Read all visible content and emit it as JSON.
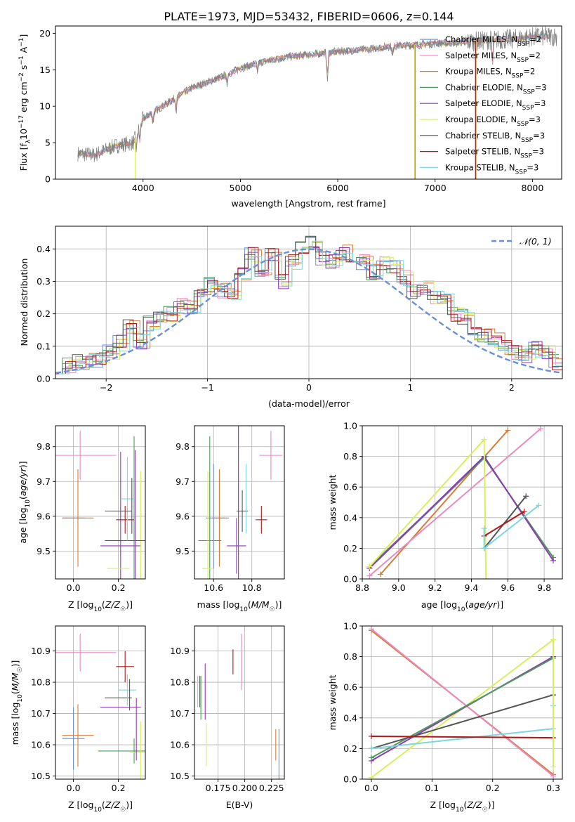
{
  "figure": {
    "title": "PLATE=1973, MJD=53432, FIBERID=0606, z=0.144"
  },
  "colors": {
    "chabrier_miles": "#6c8fdc",
    "salpeter_miles": "#e78ac3",
    "kroupa_miles": "#d97b35",
    "chabrier_elodie": "#4e9a58",
    "salpeter_elodie": "#8e3ab3",
    "kroupa_elodie": "#d9ee5c",
    "chabrier_stelib": "#555555",
    "salpeter_stelib": "#b01818",
    "kroupa_stelib": "#7fd6dc",
    "spectrum": "#808080",
    "normal": "#6a8fd8",
    "grid": "#b0b0b0"
  },
  "chart_data": [
    {
      "id": "spectrum",
      "type": "line",
      "title": "PLATE=1973, MJD=53432, FIBERID=0606, z=0.144",
      "xlabel": "wavelength [Angstrom, rest frame]",
      "ylabel": "Flux [f_λ 10^-17 erg cm^-2 s^-1 A^-1]",
      "xlim": [
        3100,
        8300
      ],
      "ylim": [
        0,
        21
      ],
      "xticks": [
        4000,
        5000,
        6000,
        7000,
        8000
      ],
      "yticks": [
        0,
        5,
        10,
        15,
        20
      ],
      "grid": false,
      "legend_position": "right",
      "legend": [
        {
          "key": "chabrier_miles",
          "label": "Chabrier MILES, N_SSP=2"
        },
        {
          "key": "salpeter_miles",
          "label": "Salpeter MILES, N_SSP=2"
        },
        {
          "key": "kroupa_miles",
          "label": "Kroupa MILES, N_SSP=2"
        },
        {
          "key": "chabrier_elodie",
          "label": "Chabrier ELODIE, N_SSP=3"
        },
        {
          "key": "salpeter_elodie",
          "label": "Salpeter ELODIE, N_SSP=3"
        },
        {
          "key": "kroupa_elodie",
          "label": "Kroupa ELODIE, N_SSP=3"
        },
        {
          "key": "chabrier_stelib",
          "label": "Chabrier STELIB, N_SSP=3"
        },
        {
          "key": "salpeter_stelib",
          "label": "Salpeter STELIB, N_SSP=3"
        },
        {
          "key": "kroupa_stelib",
          "label": "Kroupa STELIB, N_SSP=3"
        }
      ],
      "continuum": {
        "x": [
          3330,
          3500,
          3700,
          3900,
          4000,
          4200,
          4500,
          4800,
          5000,
          5200,
          5500,
          5800,
          6000,
          6300,
          6600,
          6800,
          7000,
          7200,
          7400,
          7600,
          7800,
          8000,
          8200
        ],
        "y": [
          3.5,
          3.3,
          4.5,
          5.0,
          8.3,
          10.0,
          12.5,
          14.0,
          15.2,
          16.0,
          16.8,
          17.2,
          17.5,
          17.8,
          18.3,
          18.4,
          18.6,
          18.7,
          18.9,
          19.1,
          19.2,
          19.5,
          19.6
        ]
      }
    },
    {
      "id": "residuals",
      "type": "line",
      "xlabel": "(data-model)/error",
      "ylabel": "Normed distribution",
      "xlim": [
        -2.5,
        2.5
      ],
      "ylim": [
        0,
        0.47
      ],
      "xticks": [
        -2,
        -1,
        0,
        1,
        2
      ],
      "yticks": [
        0.0,
        0.1,
        0.2,
        0.3,
        0.4
      ],
      "grid": true,
      "legend_position": "top-right",
      "legend_label": "𝒩(0, 1)",
      "normal": {
        "mean": 0,
        "sigma": 1
      },
      "hist_bin_width": 0.1,
      "hist_base": [
        0.04,
        0.04,
        0.05,
        0.055,
        0.06,
        0.085,
        0.11,
        0.16,
        0.115,
        0.17,
        0.185,
        0.2,
        0.225,
        0.22,
        0.26,
        0.29,
        0.27,
        0.26,
        0.32,
        0.38,
        0.33,
        0.38,
        0.3,
        0.36,
        0.4,
        0.42,
        0.37,
        0.36,
        0.39,
        0.38,
        0.36,
        0.33,
        0.36,
        0.34,
        0.31,
        0.27,
        0.28,
        0.25,
        0.24,
        0.2,
        0.19,
        0.14,
        0.13,
        0.12,
        0.1,
        0.08,
        0.07,
        0.09,
        0.08,
        0.05
      ]
    },
    {
      "id": "age_vs_Z",
      "type": "scatter",
      "xlabel": "Z [log10(Z/Z☉)]",
      "ylabel": "age  [log10(age/yr)]",
      "xlim": [
        -0.08,
        0.32
      ],
      "ylim": [
        9.42,
        9.86
      ],
      "xticks": [
        0.0,
        0.2
      ],
      "yticks": [
        9.5,
        9.6,
        9.7,
        9.8
      ],
      "grid": true,
      "points": [
        {
          "key": "chabrier_miles",
          "x": 0.0,
          "xerr": 0.05,
          "y": 9.595,
          "yerr": 0.0
        },
        {
          "key": "kroupa_miles",
          "x": 0.02,
          "xerr": 0.07,
          "y": 9.595,
          "yerr": 0.14
        },
        {
          "key": "salpeter_miles",
          "x": 0.03,
          "xerr": 0.16,
          "y": 9.775,
          "yerr": 0.07
        },
        {
          "key": "chabrier_elodie",
          "x": 0.27,
          "xerr": 0.0,
          "y": 9.53,
          "yerr": 0.3
        },
        {
          "key": "salpeter_elodie",
          "x": 0.21,
          "xerr": 0.09,
          "y": 9.515,
          "yerr": 0.27
        },
        {
          "key": "kroupa_elodie",
          "x": 0.3,
          "xerr": 0.0,
          "y": 9.45,
          "yerr": 0.28
        },
        {
          "key": "chabrier_stelib",
          "x": 0.27,
          "xerr": 0.13,
          "y": 9.53,
          "yerr": 0.0
        },
        {
          "key": "salpeter_stelib",
          "x": 0.23,
          "xerr": 0.04,
          "y": 9.59,
          "yerr": 0.04
        },
        {
          "key": "kroupa_stelib",
          "x": 0.24,
          "xerr": 0.03,
          "y": 9.65,
          "yerr": 0.12
        },
        {
          "key": "chabrier_stelib",
          "x": 0.2,
          "xerr": 0.06,
          "y": 9.615,
          "yerr": 0.0
        },
        {
          "key": "kroupa_elodie",
          "x": 0.2,
          "xerr": 0.05,
          "y": 9.45,
          "yerr": 0.0
        },
        {
          "key": "chabrier_stelib",
          "x": 0.26,
          "xerr": 0.0,
          "y": 9.63,
          "yerr": 0.08
        },
        {
          "key": "salpeter_elodie",
          "x": 0.275,
          "xerr": 0.0,
          "y": 9.6,
          "yerr": 0.19
        }
      ]
    },
    {
      "id": "age_vs_mass",
      "type": "scatter",
      "xlabel": "mass [log10(M/M☉)]",
      "ylabel": "",
      "xlim": [
        10.5,
        10.97
      ],
      "ylim": [
        9.42,
        9.86
      ],
      "xticks": [
        10.6,
        10.8
      ],
      "yticks": [
        9.5,
        9.6,
        9.7,
        9.8
      ],
      "grid": true,
      "points": [
        {
          "key": "chabrier_miles",
          "x": 10.62,
          "xerr": 0.06,
          "y": 9.595,
          "yerr": 0.0
        },
        {
          "key": "kroupa_miles",
          "x": 10.63,
          "xerr": 0.03,
          "y": 9.595,
          "yerr": 0.14
        },
        {
          "key": "salpeter_miles",
          "x": 10.9,
          "xerr": 0.06,
          "y": 9.775,
          "yerr": 0.07
        },
        {
          "key": "chabrier_elodie",
          "x": 10.58,
          "xerr": 0.06,
          "y": 9.53,
          "yerr": 0.3
        },
        {
          "key": "salpeter_elodie",
          "x": 10.72,
          "xerr": 0.05,
          "y": 9.515,
          "yerr": 0.08
        },
        {
          "key": "kroupa_elodie",
          "x": 10.57,
          "xerr": 0.03,
          "y": 9.45,
          "yerr": 0.28
        },
        {
          "key": "chabrier_stelib",
          "x": 10.75,
          "xerr": 0.03,
          "y": 9.615,
          "yerr": 0.06
        },
        {
          "key": "salpeter_stelib",
          "x": 10.85,
          "xerr": 0.03,
          "y": 9.59,
          "yerr": 0.04
        },
        {
          "key": "kroupa_stelib",
          "x": 10.77,
          "xerr": 0.0,
          "y": 9.65,
          "yerr": 0.1
        },
        {
          "key": "chabrier_miles",
          "x": 10.6,
          "xerr": 0.0,
          "y": 9.6,
          "yerr": 0.15
        },
        {
          "key": "salpeter_elodie",
          "x": 10.73,
          "xerr": 0.0,
          "y": 9.66,
          "yerr": 0.24
        }
      ]
    },
    {
      "id": "massweight_vs_age",
      "type": "line",
      "xlabel": "age  [log10(age/yr)]",
      "ylabel": "mass weight",
      "xlim": [
        8.8,
        9.9
      ],
      "ylim": [
        0.0,
        1.0
      ],
      "xticks": [
        8.8,
        9.0,
        9.2,
        9.4,
        9.6,
        9.8
      ],
      "yticks": [
        0.0,
        0.2,
        0.4,
        0.6,
        0.8,
        1.0
      ],
      "grid": true,
      "series": [
        {
          "key": "kroupa_miles",
          "x": [
            8.9,
            9.6
          ],
          "y": [
            0.03,
            0.97
          ]
        },
        {
          "key": "salpeter_miles",
          "x": [
            8.84,
            9.78
          ],
          "y": [
            0.02,
            0.98
          ]
        },
        {
          "key": "chabrier_miles",
          "x": [
            8.84,
            9.48
          ],
          "y": [
            0.07,
            0.8
          ]
        },
        {
          "key": "chabrier_elodie",
          "x": [
            8.84,
            9.47,
            9.85
          ],
          "y": [
            0.08,
            0.79,
            0.14
          ]
        },
        {
          "key": "salpeter_elodie",
          "x": [
            8.84,
            9.47,
            9.85
          ],
          "y": [
            0.07,
            0.8,
            0.12
          ]
        },
        {
          "key": "kroupa_elodie",
          "x": [
            8.84,
            9.47,
            9.48
          ],
          "y": [
            0.08,
            0.91,
            0.0
          ]
        },
        {
          "key": "chabrier_stelib",
          "x": [
            9.47,
            9.7
          ],
          "y": [
            0.2,
            0.54
          ]
        },
        {
          "key": "salpeter_stelib",
          "x": [
            9.47,
            9.69
          ],
          "y": [
            0.28,
            0.44
          ]
        },
        {
          "key": "kroupa_stelib",
          "x": [
            9.47,
            9.47,
            9.77
          ],
          "y": [
            0.33,
            0.2,
            0.48
          ]
        }
      ]
    },
    {
      "id": "mass_vs_Z",
      "type": "scatter",
      "xlabel": "Z [log10(Z/Z☉)]",
      "ylabel": "mass [log10(M/M☉)]",
      "xlim": [
        -0.08,
        0.32
      ],
      "ylim": [
        10.49,
        10.98
      ],
      "xticks": [
        0.0,
        0.2
      ],
      "yticks": [
        10.5,
        10.6,
        10.7,
        10.8,
        10.9
      ],
      "grid": true,
      "points": [
        {
          "key": "chabrier_miles",
          "x": 0.0,
          "xerr": 0.05,
          "y": 10.62,
          "yerr": 0.1
        },
        {
          "key": "kroupa_miles",
          "x": 0.02,
          "xerr": 0.07,
          "y": 10.63,
          "yerr": 0.1
        },
        {
          "key": "salpeter_miles",
          "x": 0.03,
          "xerr": 0.16,
          "y": 10.895,
          "yerr": 0.06
        },
        {
          "key": "chabrier_elodie",
          "x": 0.27,
          "xerr": 0.16,
          "y": 10.58,
          "yerr": 0.04
        },
        {
          "key": "salpeter_elodie",
          "x": 0.21,
          "xerr": 0.09,
          "y": 10.72,
          "yerr": 0.0
        },
        {
          "key": "kroupa_elodie",
          "x": 0.3,
          "xerr": 0.05,
          "y": 10.575,
          "yerr": 0.1
        },
        {
          "key": "chabrier_stelib",
          "x": 0.2,
          "xerr": 0.06,
          "y": 10.75,
          "yerr": 0.0
        },
        {
          "key": "salpeter_stelib",
          "x": 0.23,
          "xerr": 0.04,
          "y": 10.85,
          "yerr": 0.05
        },
        {
          "key": "kroupa_stelib",
          "x": 0.24,
          "xerr": 0.04,
          "y": 10.775,
          "yerr": 0.05
        },
        {
          "key": "chabrier_stelib",
          "x": 0.25,
          "xerr": 0.0,
          "y": 10.76,
          "yerr": 0.05
        },
        {
          "key": "salpeter_elodie",
          "x": 0.28,
          "xerr": 0.0,
          "y": 10.65,
          "yerr": 0.1
        }
      ]
    },
    {
      "id": "mass_vs_ebv",
      "type": "scatter",
      "xlabel": "E(B-V)",
      "ylabel": "",
      "xlim": [
        0.153,
        0.237
      ],
      "ylim": [
        10.49,
        10.98
      ],
      "xticks": [
        0.175,
        0.2,
        0.225
      ],
      "xticklabels": [
        "0.175",
        "0.200",
        "0.225"
      ],
      "yticks": [
        10.5,
        10.6,
        10.7,
        10.8,
        10.9
      ],
      "grid": true,
      "points": [
        {
          "key": "chabrier_elodie",
          "x": 0.159,
          "y": 10.75,
          "yerr": 0.07
        },
        {
          "key": "chabrier_stelib",
          "x": 0.158,
          "y": 10.77,
          "yerr": 0.05
        },
        {
          "key": "kroupa_stelib",
          "x": 0.156,
          "y": 10.77,
          "yerr": 0.05
        },
        {
          "key": "salpeter_elodie",
          "x": 0.163,
          "y": 10.77,
          "yerr": 0.09
        },
        {
          "key": "kroupa_elodie",
          "x": 0.164,
          "y": 10.6,
          "yerr": 0.07
        },
        {
          "key": "salpeter_stelib",
          "x": 0.189,
          "y": 10.865,
          "yerr": 0.04
        },
        {
          "key": "salpeter_miles",
          "x": 0.197,
          "y": 10.865,
          "yerr": 0.09
        },
        {
          "key": "kroupa_miles",
          "x": 0.229,
          "y": 10.6,
          "yerr": 0.05
        },
        {
          "key": "chabrier_miles",
          "x": 0.232,
          "y": 10.57,
          "yerr": 0.08
        }
      ]
    },
    {
      "id": "massweight_vs_Z",
      "type": "line",
      "xlabel": "Z [log10(Z/Z☉)]",
      "ylabel": "mass weight",
      "xlim": [
        -0.015,
        0.315
      ],
      "ylim": [
        0.0,
        1.0
      ],
      "xticks": [
        0.0,
        0.1,
        0.2,
        0.3
      ],
      "yticks": [
        0.0,
        0.2,
        0.4,
        0.6,
        0.8,
        1.0
      ],
      "grid": true,
      "series": [
        {
          "key": "kroupa_miles",
          "x": [
            0.0,
            0.3
          ],
          "y": [
            0.97,
            0.03
          ]
        },
        {
          "key": "salpeter_miles",
          "x": [
            0.0,
            0.3
          ],
          "y": [
            0.98,
            0.02
          ]
        },
        {
          "key": "kroupa_elodie",
          "x": [
            0.0,
            0.3
          ],
          "y": [
            0.01,
            0.91
          ]
        },
        {
          "key": "salpeter_elodie",
          "x": [
            0.0,
            0.3
          ],
          "y": [
            0.12,
            0.8
          ]
        },
        {
          "key": "chabrier_elodie",
          "x": [
            0.0,
            0.3
          ],
          "y": [
            0.14,
            0.79
          ]
        },
        {
          "key": "chabrier_stelib",
          "x": [
            0.0,
            0.3
          ],
          "y": [
            0.2,
            0.55
          ]
        },
        {
          "key": "kroupa_stelib",
          "x": [
            0.0,
            0.3
          ],
          "y": [
            0.2,
            0.33
          ]
        },
        {
          "key": "salpeter_stelib",
          "x": [
            0.0,
            0.3
          ],
          "y": [
            0.28,
            0.27
          ]
        },
        {
          "key": "kroupa_stelib",
          "x": [
            0.3,
            0.3
          ],
          "y": [
            0.48,
            0.33
          ]
        },
        {
          "key": "kroupa_elodie",
          "x": [
            0.3,
            0.3
          ],
          "y": [
            0.91,
            0.08
          ]
        }
      ]
    }
  ]
}
